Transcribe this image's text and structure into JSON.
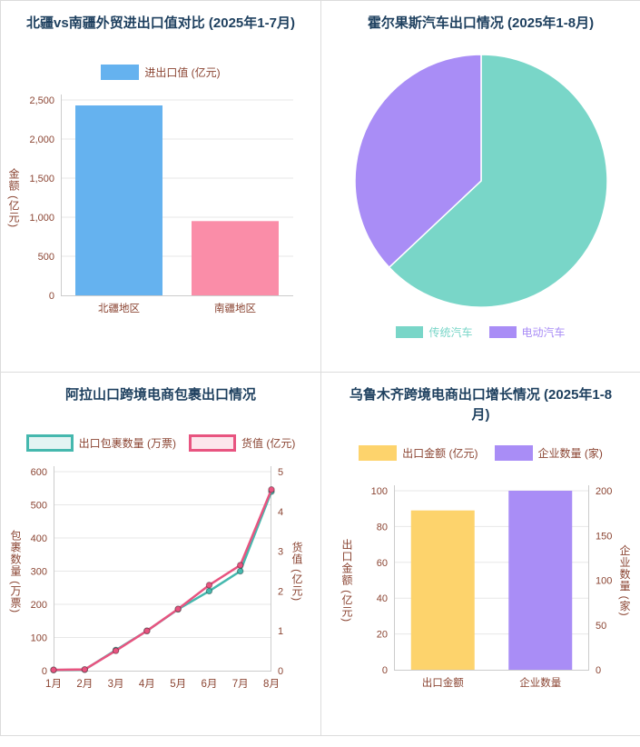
{
  "page": {
    "background": "#ffffff"
  },
  "colors": {
    "title": "#1d3f5e",
    "axis_text": "#8b4533",
    "grid": "#e7e7e7",
    "axis_line": "#cccccc",
    "panel_border": "#dcdcdc"
  },
  "chart_data": [
    {
      "type": "bar",
      "title": "北疆vs南疆外贸进出口值对比 (2025年1-7月)",
      "legend": [
        {
          "label": "进出口值 (亿元)",
          "color": "#65b2ef",
          "style": "fill"
        }
      ],
      "categories": [
        "北疆地区",
        "南疆地区"
      ],
      "values": [
        2430,
        950
      ],
      "bar_colors": [
        "#65b2ef",
        "#fa8da8"
      ],
      "ylabel": "金额 (亿元)",
      "ylim": [
        0,
        2500
      ],
      "yticks": [
        0,
        500,
        1000,
        1500,
        2000,
        2500
      ],
      "ytick_labels": [
        "0",
        "500",
        "1,000",
        "1,500",
        "2,000",
        "2,500"
      ]
    },
    {
      "type": "pie",
      "title": "霍尔果斯汽车出口情况 (2025年1-8月)",
      "slices": [
        {
          "label": "传统汽车",
          "value": 63,
          "color": "#79d6c8"
        },
        {
          "label": "电动汽车",
          "value": 37,
          "color": "#a98df6"
        }
      ],
      "legend": [
        {
          "label": "传统汽车",
          "color": "#79d6c8",
          "style": "fill-small",
          "text_color": "#79d6c8"
        },
        {
          "label": "电动汽车",
          "color": "#a98df6",
          "style": "fill-small",
          "text_color": "#a98df6"
        }
      ],
      "legend_position": "bottom"
    },
    {
      "type": "line",
      "title": "阿拉山口跨境电商包裹出口情况",
      "categories": [
        "1月",
        "2月",
        "3月",
        "4月",
        "5月",
        "6月",
        "7月",
        "8月"
      ],
      "series": [
        {
          "name": "出口包裹数量 (万票)",
          "axis": "left",
          "color": "#45b8ae",
          "values": [
            2,
            3,
            62,
            120,
            185,
            240,
            300,
            540
          ]
        },
        {
          "name": "货值 (亿元)",
          "axis": "right",
          "color": "#e85480",
          "values": [
            0.02,
            0.03,
            0.5,
            1.0,
            1.55,
            2.15,
            2.65,
            4.55
          ]
        }
      ],
      "legend": [
        {
          "label": "出口包裹数量 (万票)",
          "color": "#45b8ae",
          "style": "box"
        },
        {
          "label": "货值 (亿元)",
          "color": "#e85480",
          "style": "box"
        }
      ],
      "ylabel_left": "包裹数量 (万票)",
      "ylabel_right": "货值 (亿元)",
      "ylim_left": [
        0,
        600
      ],
      "yticks_left": [
        0,
        100,
        200,
        300,
        400,
        500,
        600
      ],
      "ytick_labels_left": [
        "0",
        "100",
        "200",
        "300",
        "400",
        "500",
        "600"
      ],
      "ylim_right": [
        0,
        5
      ],
      "yticks_right": [
        0,
        1,
        2,
        3,
        4,
        5
      ],
      "ytick_labels_right": [
        "0",
        "1",
        "2",
        "3",
        "4",
        "5"
      ]
    },
    {
      "type": "bar",
      "title": "乌鲁木齐跨境电商出口增长情况 (2025年1-8月)",
      "categories": [
        "出口金额",
        "企业数量"
      ],
      "series": [
        {
          "name": "出口金额 (亿元)",
          "axis": "left",
          "color": "#fdd36c",
          "value": 89
        },
        {
          "name": "企业数量 (家)",
          "axis": "right",
          "color": "#a98df6",
          "value": 200
        }
      ],
      "legend": [
        {
          "label": "出口金额 (亿元)",
          "color": "#fdd36c",
          "style": "fill"
        },
        {
          "label": "企业数量 (家)",
          "color": "#a98df6",
          "style": "fill"
        }
      ],
      "ylabel_left": "出口金额 (亿元)",
      "ylabel_right": "企业数量 (家)",
      "ylim_left": [
        0,
        100
      ],
      "yticks_left": [
        0,
        20,
        40,
        60,
        80,
        100
      ],
      "ytick_labels_left": [
        "0",
        "20",
        "40",
        "60",
        "80",
        "100"
      ],
      "ylim_right": [
        0,
        200
      ],
      "yticks_right": [
        0,
        50,
        100,
        150,
        200
      ],
      "ytick_labels_right": [
        "0",
        "50",
        "100",
        "150",
        "200"
      ]
    }
  ]
}
